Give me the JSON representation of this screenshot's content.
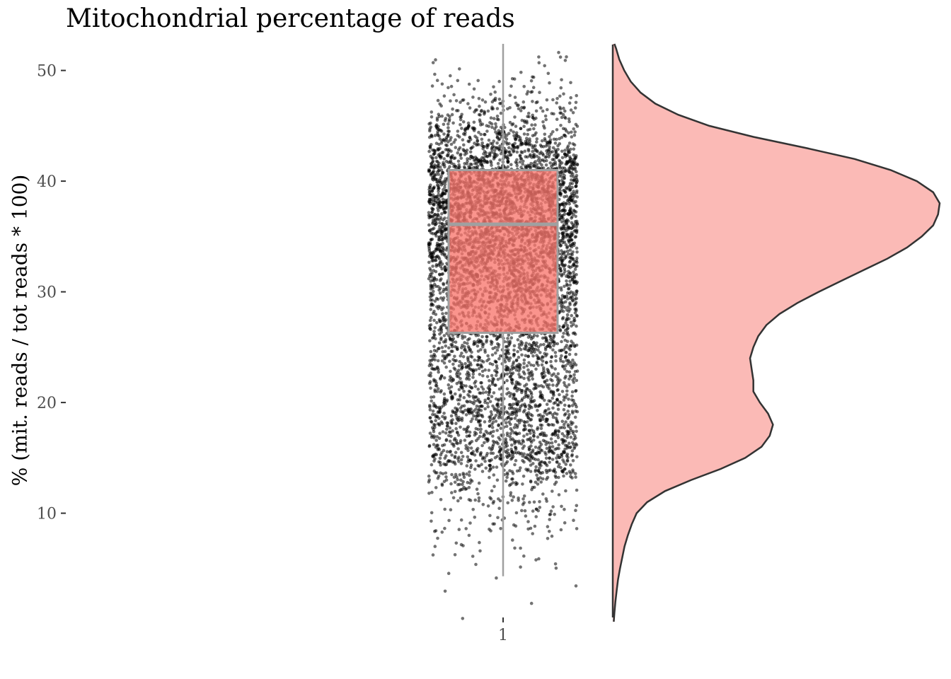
{
  "chart_data": {
    "type": "raincloud",
    "title": "Mitochondrial percentage of reads",
    "xlabel": "",
    "ylabel": "% (mit. reads / tot reads * 100)",
    "x_tick_labels": [
      "1"
    ],
    "y_ticks": [
      10,
      20,
      30,
      40,
      50
    ],
    "ylim": [
      0.2,
      52.4
    ],
    "grid": false,
    "legend": "none",
    "boxplot": {
      "category": "1",
      "q1": 26.3,
      "median": 36.1,
      "q3": 41.0,
      "whisker_low": 4.3,
      "whisker_high": 52.4
    },
    "density": {
      "y": [
        0.2,
        1,
        2,
        3,
        4,
        5,
        6,
        7,
        8,
        9,
        10,
        11,
        12,
        13,
        14,
        15,
        16,
        17,
        18,
        19,
        20,
        21,
        22,
        23,
        24,
        25,
        26,
        27,
        28,
        29,
        30,
        31,
        32,
        33,
        34,
        35,
        36,
        37,
        38,
        39,
        40,
        41,
        42,
        43,
        44,
        45,
        46,
        47,
        48,
        49,
        50,
        51,
        52,
        52.4
      ],
      "relative_density": [
        0.003,
        0.005,
        0.008,
        0.012,
        0.016,
        0.022,
        0.029,
        0.036,
        0.046,
        0.058,
        0.073,
        0.105,
        0.16,
        0.24,
        0.33,
        0.405,
        0.455,
        0.48,
        0.49,
        0.475,
        0.45,
        0.43,
        0.43,
        0.425,
        0.42,
        0.43,
        0.445,
        0.47,
        0.51,
        0.565,
        0.63,
        0.7,
        0.77,
        0.84,
        0.9,
        0.945,
        0.98,
        0.995,
        1.0,
        0.98,
        0.93,
        0.85,
        0.74,
        0.59,
        0.43,
        0.295,
        0.2,
        0.13,
        0.085,
        0.055,
        0.035,
        0.02,
        0.01,
        0.005
      ]
    },
    "points": {
      "n_approx": 6000,
      "color": "#000000"
    },
    "colors": {
      "box_fill": "#f8766d",
      "box_outline": "#a0a0a0",
      "violin_fill": "#f8766d",
      "violin_outline": "#333333",
      "axis_text": "#4d4d4d"
    }
  }
}
